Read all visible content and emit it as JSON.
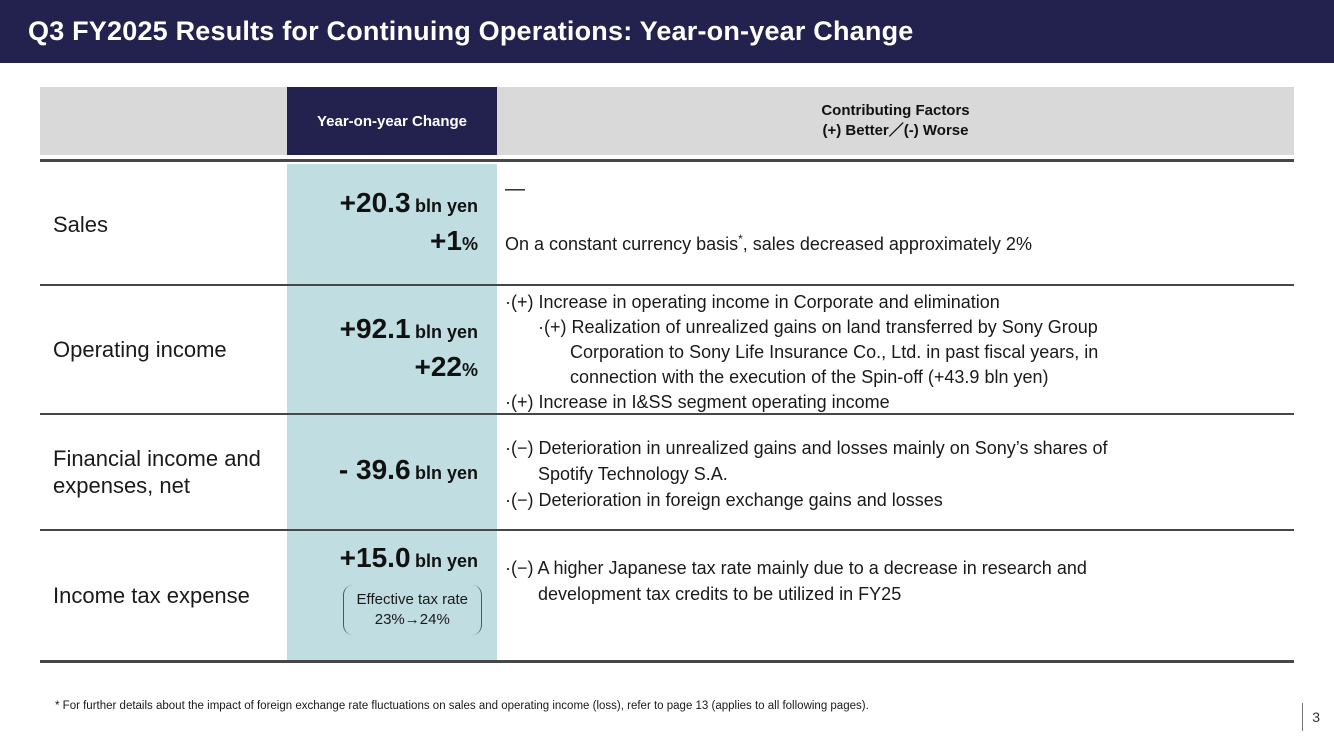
{
  "slide": {
    "title": "Q3 FY2025 Results for Continuing Operations: Year-on-year Change",
    "footnote": "* For further details about the impact of foreign exchange rate fluctuations on sales and operating income (loss), refer to page 13 (applies to all following pages).",
    "page_number": "3"
  },
  "colors": {
    "navy": "#23214e",
    "teal": "#c0dde2",
    "header_grey": "#d9d9d9",
    "rule_dark": "#474747",
    "bracket_blue": "#3c5a78"
  },
  "table": {
    "header": {
      "change_col": "Year-on-year Change",
      "factors_line1": "Contributing Factors",
      "factors_line2": "(+) Better／(-) Worse"
    },
    "rows": [
      {
        "label": "Sales",
        "value_main": "+20.3",
        "value_unit": "bln yen",
        "value_pct": "+1",
        "value_pct_sym": "%",
        "factors_dash": "—",
        "factors_sentence": {
          "pre": "On a constant currency basis",
          "sup": "*",
          "post": ", sales decreased approximately 2%"
        }
      },
      {
        "label": "Operating income",
        "value_main": "+92.1",
        "value_unit": "bln yen",
        "value_pct": "+22",
        "value_pct_sym": "%",
        "factors": [
          "·(+) Increase in operating income in Corporate and elimination",
          "·(+) Realization of unrealized gains on land transferred by Sony Group",
          "Corporation to Sony Life Insurance Co., Ltd. in past fiscal years, in",
          "connection with the execution of the Spin-off (+43.9 bln yen)",
          "·(+) Increase in I&SS segment operating income"
        ]
      },
      {
        "label": "Financial income and expenses, net",
        "value_main": "- 39.6",
        "value_unit": "bln yen",
        "factors": [
          "·(−) Deterioration in unrealized gains and losses mainly on Sony’s shares of",
          "Spotify Technology S.A.",
          "·(−) Deterioration in foreign exchange gains and losses"
        ]
      },
      {
        "label": "Income tax expense",
        "value_main": "+15.0",
        "value_unit": "bln yen",
        "note_line1": "Effective tax rate",
        "note_line2": "23%→24%",
        "factors": [
          "·(−) A higher Japanese tax rate mainly due to a decrease in research and",
          "development tax credits to be utilized in FY25"
        ]
      }
    ]
  }
}
